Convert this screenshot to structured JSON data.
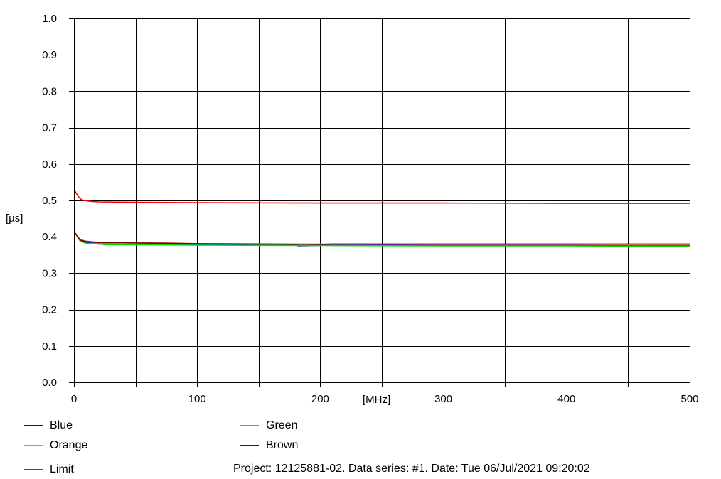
{
  "chart_data": {
    "type": "line",
    "ylabel": "[µs]",
    "xlabel": "[MHz]",
    "xlim": [
      0,
      500
    ],
    "ylim": [
      0.0,
      1.0
    ],
    "x_ticks": [
      0,
      100,
      200,
      300,
      400,
      500
    ],
    "x_tick_labels": [
      "0",
      "100",
      "200",
      "300",
      "400",
      "500"
    ],
    "y_ticks": [
      0.0,
      0.1,
      0.2,
      0.3,
      0.4,
      0.5,
      0.6,
      0.7,
      0.8,
      0.9,
      1.0
    ],
    "y_tick_labels": [
      "0.0",
      "0.1",
      "0.2",
      "0.3",
      "0.4",
      "0.5",
      "0.6",
      "0.7",
      "0.8",
      "0.9",
      "1.0"
    ],
    "grid": true,
    "series": [
      {
        "name": "Blue",
        "color": "#0000ff",
        "x": [
          1,
          5,
          10,
          20,
          50,
          100,
          180,
          182,
          210,
          300,
          400,
          500
        ],
        "y": [
          0.41,
          0.39,
          0.385,
          0.38,
          0.379,
          0.378,
          0.377,
          0.375,
          0.377,
          0.377,
          0.377,
          0.376
        ]
      },
      {
        "name": "Green",
        "color": "#00e000",
        "x": [
          1,
          5,
          10,
          20,
          25,
          50,
          100,
          200,
          300,
          400,
          500
        ],
        "y": [
          0.41,
          0.388,
          0.382,
          0.381,
          0.378,
          0.378,
          0.377,
          0.376,
          0.375,
          0.375,
          0.374
        ]
      },
      {
        "name": "Orange",
        "color": "#ff7070",
        "x": [
          1,
          5,
          10,
          20,
          50,
          80,
          100,
          200,
          300,
          400,
          500
        ],
        "y": [
          0.41,
          0.392,
          0.388,
          0.385,
          0.384,
          0.383,
          0.381,
          0.38,
          0.379,
          0.379,
          0.378
        ]
      },
      {
        "name": "Brown",
        "color": "#800000",
        "x": [
          1,
          5,
          10,
          20,
          50,
          100,
          200,
          210,
          300,
          400,
          500
        ],
        "y": [
          0.41,
          0.391,
          0.387,
          0.384,
          0.383,
          0.381,
          0.379,
          0.38,
          0.38,
          0.38,
          0.38
        ]
      },
      {
        "name": "Limit",
        "color": "#ff0000",
        "x": [
          1,
          3,
          5,
          7,
          10,
          15,
          20,
          50,
          100,
          200,
          300,
          400,
          500
        ],
        "y": [
          0.525,
          0.513,
          0.505,
          0.501,
          0.499,
          0.497,
          0.496,
          0.495,
          0.494,
          0.493,
          0.493,
          0.492,
          0.492
        ]
      }
    ],
    "legend": [
      {
        "name": "Blue",
        "color": "#0000ff"
      },
      {
        "name": "Orange",
        "color": "#ff7070"
      },
      {
        "name": "Limit",
        "color": "#ff0000"
      },
      {
        "name": "Green",
        "color": "#00e000"
      },
      {
        "name": "Brown",
        "color": "#800000"
      }
    ]
  },
  "footer": "Project: 12125881-02. Data series: #1. Date: Tue 06/Jul/2021 09:20:02"
}
